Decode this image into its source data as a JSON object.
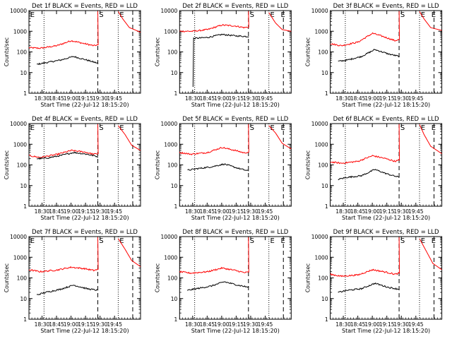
{
  "chart_data": [
    {
      "type": "line",
      "title": "Det 1f BLACK = Events, RED = LLD",
      "xlabel": "Start Time (22-Jul-12 18:15:20)",
      "ylabel": "Counts/sec",
      "x_ticks": [
        "18:30",
        "18:45",
        "19:00",
        "19:15",
        "19:30",
        "19:45"
      ],
      "y_ticks": [
        "1",
        "10",
        "100",
        "1000",
        "10000"
      ],
      "ylim": [
        1,
        10000
      ],
      "y_scale": "log",
      "markers": [
        "E",
        "S",
        "E"
      ],
      "series": [
        {
          "color": "#ff0000",
          "pre": [
            [
              0,
              160
            ],
            [
              0.1,
              150
            ],
            [
              0.25,
              200
            ],
            [
              0.38,
              350
            ],
            [
              0.5,
              250
            ],
            [
              0.58,
              200
            ],
            [
              0.62,
              220
            ]
          ],
          "post": [
            [
              0.8,
              9000
            ],
            [
              0.84,
              4000
            ],
            [
              0.9,
              1500
            ],
            [
              1.0,
              900
            ]
          ]
        },
        {
          "color": "#000000",
          "pre": [
            [
              0.07,
              25
            ],
            [
              0.15,
              30
            ],
            [
              0.28,
              40
            ],
            [
              0.4,
              60
            ],
            [
              0.52,
              40
            ],
            [
              0.62,
              28
            ]
          ]
        }
      ]
    },
    {
      "type": "line",
      "title": "Det 2f BLACK = Events, RED = LLD",
      "xlabel": "Start Time (22-Jul-12 18:15:20)",
      "ylabel": "Counts/sec",
      "x_ticks": [
        "18:30",
        "18:45",
        "19:00",
        "19:15",
        "19:30",
        "19:45"
      ],
      "y_ticks": [
        "1",
        "10",
        "100",
        "1000",
        "10000"
      ],
      "ylim": [
        1,
        10000
      ],
      "y_scale": "log",
      "markers": [
        "S",
        "E",
        "E"
      ],
      "series": [
        {
          "color": "#ff0000",
          "pre": [
            [
              0,
              1000
            ],
            [
              0.12,
              1000
            ],
            [
              0.25,
              1200
            ],
            [
              0.38,
              2000
            ],
            [
              0.5,
              1800
            ],
            [
              0.58,
              1500
            ],
            [
              0.62,
              1600
            ]
          ],
          "post": [
            [
              0.8,
              8000
            ],
            [
              0.86,
              2500
            ],
            [
              0.92,
              1200
            ],
            [
              1.0,
              1000
            ]
          ]
        },
        {
          "color": "#000000",
          "pre": [
            [
              0.12,
              2
            ],
            [
              0.125,
              450
            ],
            [
              0.25,
              500
            ],
            [
              0.38,
              700
            ],
            [
              0.5,
              600
            ],
            [
              0.62,
              550
            ]
          ]
        }
      ]
    },
    {
      "type": "line",
      "title": "Det 3f BLACK = Events, RED = LLD",
      "xlabel": "Start Time (22-Jul-12 18:15:20)",
      "ylabel": "Counts/sec",
      "x_ticks": [
        "18:30",
        "18:45",
        "19:00",
        "19:15",
        "19:30",
        "19:45"
      ],
      "y_ticks": [
        "1",
        "10",
        "100",
        "1000",
        "10000"
      ],
      "ylim": [
        1,
        10000
      ],
      "y_scale": "log",
      "markers": [
        "S",
        "E",
        "E"
      ],
      "series": [
        {
          "color": "#ff0000",
          "pre": [
            [
              0,
              250
            ],
            [
              0.1,
              200
            ],
            [
              0.25,
              300
            ],
            [
              0.38,
              800
            ],
            [
              0.5,
              500
            ],
            [
              0.58,
              350
            ],
            [
              0.62,
              400
            ]
          ],
          "post": [
            [
              0.8,
              9000
            ],
            [
              0.84,
              4000
            ],
            [
              0.9,
              1500
            ],
            [
              1.0,
              1100
            ]
          ]
        },
        {
          "color": "#000000",
          "pre": [
            [
              0.07,
              35
            ],
            [
              0.15,
              40
            ],
            [
              0.28,
              60
            ],
            [
              0.4,
              130
            ],
            [
              0.52,
              80
            ],
            [
              0.62,
              60
            ]
          ]
        }
      ]
    },
    {
      "type": "line",
      "title": "Det 4f BLACK = Events, RED = LLD",
      "xlabel": "Start Time (22-Jul-12 18:15:20)",
      "ylabel": "Counts/sec",
      "x_ticks": [
        "18:30",
        "18:45",
        "19:00",
        "19:15",
        "19:30",
        "19:45"
      ],
      "y_ticks": [
        "1",
        "10",
        "100",
        "1000",
        "10000"
      ],
      "ylim": [
        1,
        10000
      ],
      "y_scale": "log",
      "markers": [
        "E",
        "S",
        "E"
      ],
      "series": [
        {
          "color": "#ff0000",
          "pre": [
            [
              0,
              280
            ],
            [
              0.1,
              230
            ],
            [
              0.25,
              320
            ],
            [
              0.38,
              500
            ],
            [
              0.5,
              420
            ],
            [
              0.58,
              330
            ],
            [
              0.62,
              350
            ]
          ],
          "post": [
            [
              0.8,
              8000
            ],
            [
              0.86,
              3000
            ],
            [
              0.92,
              900
            ],
            [
              1.0,
              500
            ]
          ]
        },
        {
          "color": "#000000",
          "pre": [
            [
              0.07,
              200
            ],
            [
              0.15,
              210
            ],
            [
              0.28,
              280
            ],
            [
              0.4,
              400
            ],
            [
              0.52,
              330
            ],
            [
              0.62,
              250
            ]
          ]
        }
      ]
    },
    {
      "type": "line",
      "title": "Det 5f BLACK = Events, RED = LLD",
      "xlabel": "Start Time (22-Jul-12 18:15:20)",
      "ylabel": "Counts/sec",
      "x_ticks": [
        "18:30",
        "18:45",
        "19:00",
        "19:15",
        "19:30",
        "19:45"
      ],
      "y_ticks": [
        "1",
        "10",
        "100",
        "1000",
        "10000"
      ],
      "ylim": [
        1,
        10000
      ],
      "y_scale": "log",
      "markers": [
        "S",
        "E",
        "E"
      ],
      "series": [
        {
          "color": "#ff0000",
          "pre": [
            [
              0,
              400
            ],
            [
              0.1,
              330
            ],
            [
              0.25,
              400
            ],
            [
              0.38,
              700
            ],
            [
              0.5,
              500
            ],
            [
              0.58,
              380
            ],
            [
              0.62,
              420
            ]
          ],
          "post": [
            [
              0.8,
              8000
            ],
            [
              0.86,
              3500
            ],
            [
              0.92,
              1100
            ],
            [
              1.0,
              600
            ]
          ]
        },
        {
          "color": "#000000",
          "pre": [
            [
              0.07,
              55
            ],
            [
              0.15,
              65
            ],
            [
              0.28,
              80
            ],
            [
              0.4,
              110
            ],
            [
              0.52,
              70
            ],
            [
              0.62,
              50
            ]
          ]
        }
      ]
    },
    {
      "type": "line",
      "title": "Det 6f BLACK = Events, RED = LLD",
      "xlabel": "Start Time (22-Jul-12 18:15:20)",
      "ylabel": "Counts/sec",
      "x_ticks": [
        "18:30",
        "18:45",
        "19:00",
        "19:15",
        "19:30",
        "19:45"
      ],
      "y_ticks": [
        "1",
        "10",
        "100",
        "1000",
        "10000"
      ],
      "ylim": [
        1,
        10000
      ],
      "y_scale": "log",
      "markers": [
        "S",
        "E",
        "E"
      ],
      "series": [
        {
          "color": "#ff0000",
          "pre": [
            [
              0,
              140
            ],
            [
              0.1,
              120
            ],
            [
              0.25,
              150
            ],
            [
              0.38,
              280
            ],
            [
              0.5,
              200
            ],
            [
              0.58,
              150
            ],
            [
              0.62,
              170
            ]
          ],
          "post": [
            [
              0.8,
              9000
            ],
            [
              0.84,
              3000
            ],
            [
              0.9,
              800
            ],
            [
              1.0,
              350
            ]
          ]
        },
        {
          "color": "#000000",
          "pre": [
            [
              0.07,
              20
            ],
            [
              0.15,
              25
            ],
            [
              0.28,
              30
            ],
            [
              0.4,
              60
            ],
            [
              0.52,
              35
            ],
            [
              0.62,
              25
            ]
          ]
        }
      ]
    },
    {
      "type": "line",
      "title": "Det 7f BLACK = Events, RED = LLD",
      "xlabel": "Start Time (22-Jul-12 18:15:20)",
      "ylabel": "Counts/sec",
      "x_ticks": [
        "18:30",
        "18:45",
        "19:00",
        "19:15",
        "19:30",
        "19:45"
      ],
      "y_ticks": [
        "1",
        "10",
        "100",
        "1000",
        "10000"
      ],
      "ylim": [
        1,
        10000
      ],
      "y_scale": "log",
      "markers": [
        "E",
        "S",
        "E"
      ],
      "series": [
        {
          "color": "#ff0000",
          "pre": [
            [
              0,
              250
            ],
            [
              0.1,
              200
            ],
            [
              0.25,
              240
            ],
            [
              0.38,
              330
            ],
            [
              0.5,
              280
            ],
            [
              0.58,
              230
            ],
            [
              0.62,
              260
            ]
          ],
          "post": [
            [
              0.8,
              8000
            ],
            [
              0.86,
              2500
            ],
            [
              0.92,
              700
            ],
            [
              1.0,
              350
            ]
          ]
        },
        {
          "color": "#000000",
          "pre": [
            [
              0.07,
              15
            ],
            [
              0.15,
              20
            ],
            [
              0.28,
              28
            ],
            [
              0.4,
              45
            ],
            [
              0.52,
              30
            ],
            [
              0.62,
              25
            ]
          ]
        }
      ]
    },
    {
      "type": "line",
      "title": "Det 8f BLACK = Events, RED = LLD",
      "xlabel": "Start Time (22-Jul-12 18:15:20)",
      "ylabel": "Counts/sec",
      "x_ticks": [
        "18:30",
        "18:45",
        "19:00",
        "19:15",
        "19:30",
        "19:45"
      ],
      "y_ticks": [
        "1",
        "10",
        "100",
        "1000",
        "10000"
      ],
      "ylim": [
        1,
        10000
      ],
      "y_scale": "log",
      "markers": [
        "S",
        "E",
        "E"
      ],
      "series": [
        {
          "color": "#ff0000",
          "pre": [
            [
              0,
              200
            ],
            [
              0.1,
              170
            ],
            [
              0.25,
              200
            ],
            [
              0.38,
              300
            ],
            [
              0.5,
              230
            ],
            [
              0.58,
              180
            ],
            [
              0.62,
              190
            ]
          ],
          "post": []
        },
        {
          "color": "#000000",
          "pre": [
            [
              0.07,
              25
            ],
            [
              0.15,
              30
            ],
            [
              0.28,
              40
            ],
            [
              0.4,
              65
            ],
            [
              0.52,
              45
            ],
            [
              0.62,
              35
            ]
          ]
        }
      ]
    },
    {
      "type": "line",
      "title": "Det 9f BLACK = Events, RED = LLD",
      "xlabel": "Start Time (22-Jul-12 18:15:20)",
      "ylabel": "Counts/sec",
      "x_ticks": [
        "18:30",
        "18:45",
        "19:00",
        "19:15",
        "19:30",
        "19:45"
      ],
      "y_ticks": [
        "1",
        "10",
        "100",
        "1000",
        "10000"
      ],
      "ylim": [
        1,
        10000
      ],
      "y_scale": "log",
      "markers": [
        "S",
        "E",
        "E"
      ],
      "series": [
        {
          "color": "#ff0000",
          "pre": [
            [
              0,
              150
            ],
            [
              0.1,
              120
            ],
            [
              0.25,
              140
            ],
            [
              0.38,
              250
            ],
            [
              0.5,
              190
            ],
            [
              0.58,
              150
            ],
            [
              0.62,
              170
            ]
          ],
          "post": [
            [
              0.8,
              8000
            ],
            [
              0.86,
              2000
            ],
            [
              0.92,
              500
            ],
            [
              1.0,
              250
            ]
          ]
        },
        {
          "color": "#000000",
          "pre": [
            [
              0.07,
              20
            ],
            [
              0.15,
              25
            ],
            [
              0.28,
              30
            ],
            [
              0.4,
              55
            ],
            [
              0.52,
              35
            ],
            [
              0.62,
              28
            ]
          ]
        }
      ]
    }
  ]
}
